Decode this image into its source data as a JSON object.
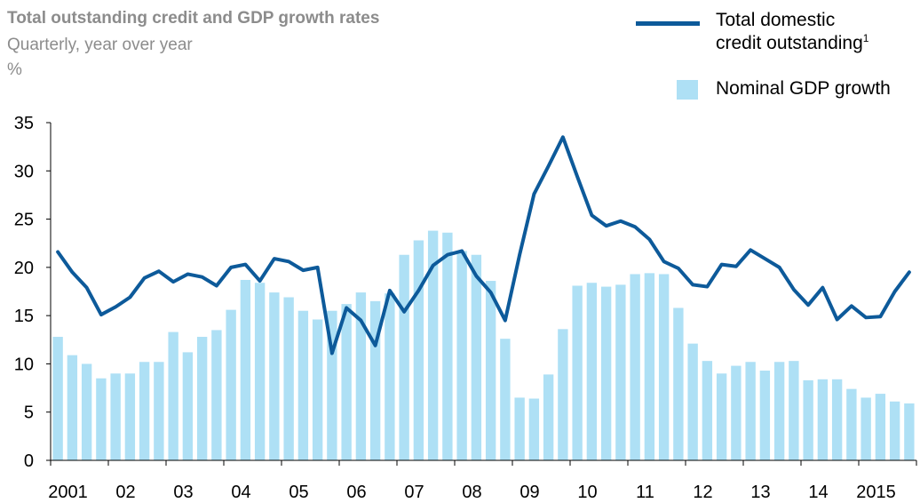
{
  "chart_data": {
    "type": "bar",
    "title": "Total outstanding credit and GDP growth rates",
    "subtitle": "Quarterly, year over year",
    "unit": "%",
    "ylim": [
      0,
      35
    ],
    "y_ticks": [
      "0",
      "5",
      "10",
      "15",
      "20",
      "25",
      "30",
      "35"
    ],
    "x_tick_labels": [
      "2001",
      "02",
      "03",
      "04",
      "05",
      "06",
      "07",
      "08",
      "09",
      "10",
      "11",
      "12",
      "13",
      "14",
      "2015"
    ],
    "legend_placement": "top-right",
    "grid": false,
    "series": [
      {
        "name": "Total domestic credit outstanding",
        "name_line1": "Total domestic",
        "name_line2": "credit outstanding",
        "footnote": "1",
        "type": "line",
        "color": "#0d5a9a",
        "values": [
          21.6,
          19.5,
          17.9,
          15.1,
          15.9,
          16.9,
          18.9,
          19.6,
          18.5,
          19.3,
          19.0,
          18.1,
          20.0,
          20.3,
          18.6,
          20.9,
          20.6,
          19.7,
          20.0,
          11.1,
          15.8,
          14.5,
          11.9,
          17.6,
          15.4,
          17.6,
          20.2,
          21.3,
          21.7,
          19.1,
          17.4,
          14.5,
          21.3,
          27.6,
          30.5,
          33.5,
          29.4,
          25.4,
          24.3,
          24.8,
          24.2,
          22.9,
          20.6,
          19.9,
          18.2,
          18.0,
          20.3,
          20.1,
          21.8,
          20.9,
          20.0,
          17.7,
          16.1,
          17.9,
          14.6,
          16.0,
          14.8,
          14.9,
          17.5,
          19.5
        ]
      },
      {
        "name": "Nominal GDP growth",
        "type": "bar",
        "color": "#aee0f5",
        "values": [
          12.8,
          10.9,
          10.0,
          8.5,
          9.0,
          9.0,
          10.2,
          10.2,
          13.3,
          11.2,
          12.8,
          13.5,
          15.6,
          18.7,
          18.4,
          17.4,
          16.9,
          15.5,
          14.6,
          15.5,
          16.2,
          17.4,
          16.5,
          17.3,
          21.3,
          22.8,
          23.8,
          23.6,
          21.7,
          21.3,
          18.6,
          12.6,
          6.5,
          6.4,
          8.9,
          13.6,
          18.1,
          18.4,
          18.0,
          18.2,
          19.3,
          19.4,
          19.3,
          15.8,
          12.1,
          10.3,
          9.0,
          9.8,
          10.2,
          9.3,
          10.2,
          10.3,
          8.3,
          8.4,
          8.4,
          7.4,
          6.5,
          6.9,
          6.1,
          5.9
        ]
      }
    ]
  }
}
